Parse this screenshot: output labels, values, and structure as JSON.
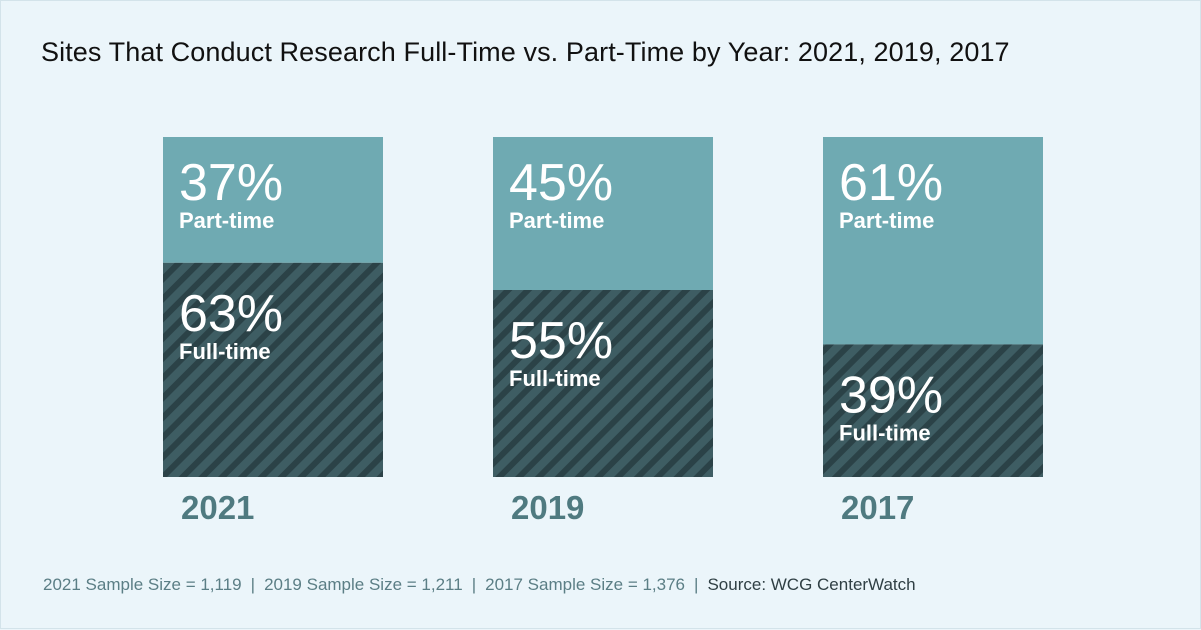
{
  "title": "Sites That Conduct Research Full-Time vs. Part-Time by Year: 2021, 2019, 2017",
  "colors": {
    "background": "#ebf5fa",
    "part_time": "#6faab2",
    "full_time": "#3e5d63",
    "full_time_stripe": "#2b4247",
    "year_label": "#4f7a80",
    "segment_text": "#ffffff"
  },
  "chart_data": {
    "type": "bar",
    "stacked": true,
    "normalized_percent": true,
    "categories": [
      "2021",
      "2019",
      "2017"
    ],
    "series": [
      {
        "name": "Part-time",
        "values": [
          37,
          45,
          61
        ],
        "labels": [
          "37%",
          "45%",
          "61%"
        ]
      },
      {
        "name": "Full-time",
        "values": [
          63,
          55,
          39
        ],
        "labels": [
          "63%",
          "55%",
          "39%"
        ]
      }
    ],
    "ylim": [
      0,
      100
    ],
    "grid": false
  },
  "footer": {
    "items": [
      "2021 Sample Size = 1,119",
      "2019 Sample Size = 1,211",
      "2017 Sample Size = 1,376"
    ],
    "separator": "|",
    "source": "Source: WCG CenterWatch"
  }
}
